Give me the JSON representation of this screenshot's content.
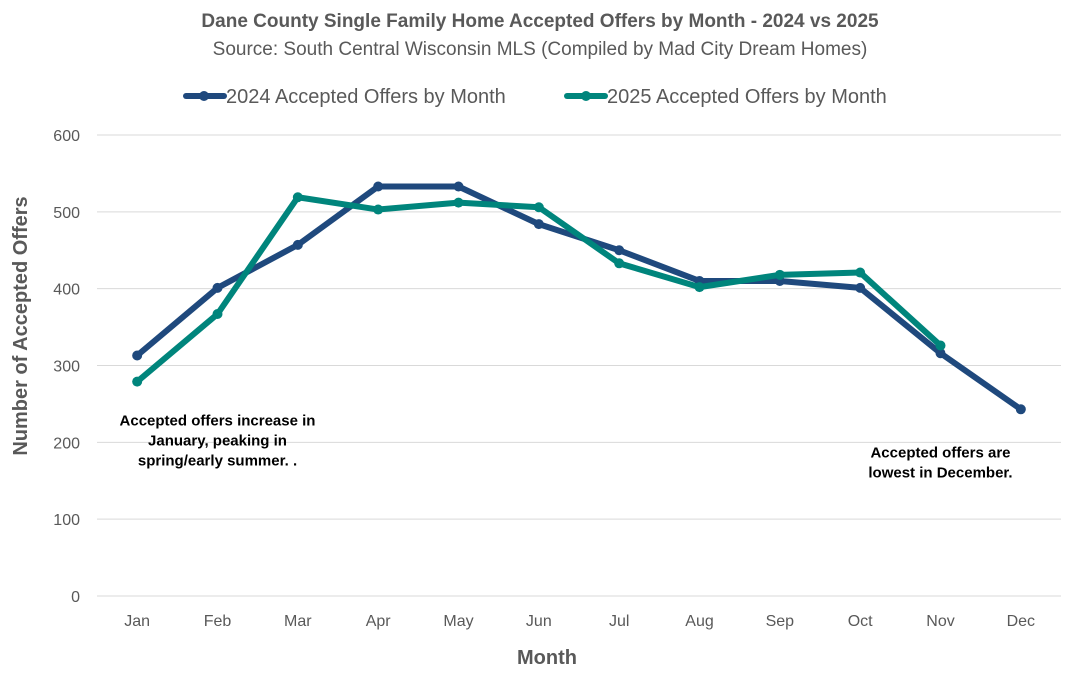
{
  "chart_data": {
    "type": "line",
    "title": "Dane County Single Family Home Accepted Offers by Month - 2024 vs 2025",
    "subtitle": "Source: South Central Wisconsin MLS (Compiled by Mad City Dream Homes)",
    "xlabel": "Month",
    "ylabel": "Number of Accepted Offers",
    "ylim": [
      0,
      600
    ],
    "yticks": [
      0,
      100,
      200,
      300,
      400,
      500,
      600
    ],
    "grid": true,
    "legend_position": "top",
    "categories": [
      "Jan",
      "Feb",
      "Mar",
      "Apr",
      "May",
      "Jun",
      "Jul",
      "Aug",
      "Sep",
      "Oct",
      "Nov",
      "Dec"
    ],
    "series": [
      {
        "name": "2024 Accepted Offers by Month",
        "color": "#1f497d",
        "values": [
          313,
          401,
          457,
          533,
          533,
          484,
          450,
          410,
          410,
          401,
          316,
          243
        ]
      },
      {
        "name": "2025 Accepted Offers by Month",
        "color": "#00857c",
        "values": [
          279,
          367,
          519,
          503,
          512,
          506,
          433,
          402,
          418,
          421,
          326,
          null
        ]
      }
    ],
    "annotations": [
      {
        "lines": [
          "Accepted offers increase in",
          "January, peaking in",
          "spring/early summer. ."
        ],
        "anchor": "Feb",
        "value": 222
      },
      {
        "lines": [
          "Accepted offers are",
          "lowest in December."
        ],
        "anchor": "Nov",
        "value": 180
      }
    ]
  }
}
